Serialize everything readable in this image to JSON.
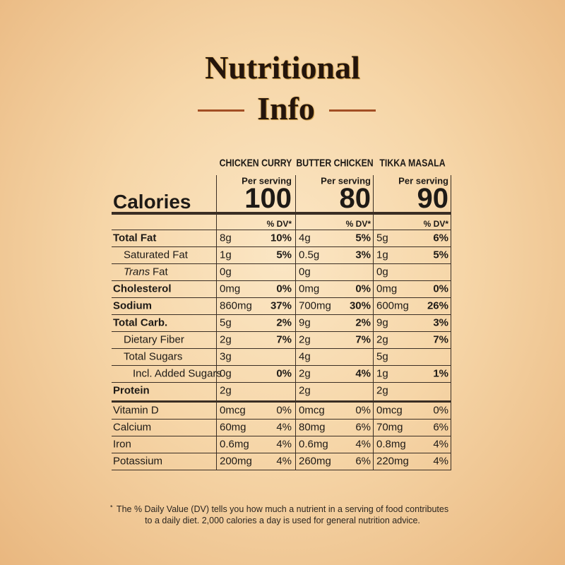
{
  "title": {
    "line1": "Nutritional",
    "line2": "Info"
  },
  "products": [
    {
      "name": "CHICKEN CURRY",
      "serving_label": "Per serving",
      "calories": "100",
      "dv_header": "% DV*"
    },
    {
      "name": "BUTTER CHICKEN",
      "serving_label": "Per serving",
      "calories": "80",
      "dv_header": "% DV*"
    },
    {
      "name": "TIKKA MASALA",
      "serving_label": "Per serving",
      "calories": "90",
      "dv_header": "% DV*"
    }
  ],
  "calories_label": "Calories",
  "nutrients": [
    {
      "label": "Total Fat",
      "bold": true,
      "indent": 0,
      "values": [
        {
          "amount": "8g",
          "dv": "10%"
        },
        {
          "amount": "4g",
          "dv": "5%"
        },
        {
          "amount": "5g",
          "dv": "6%"
        }
      ]
    },
    {
      "label": "Saturated Fat",
      "bold": false,
      "indent": 1,
      "values": [
        {
          "amount": "1g",
          "dv": "5%"
        },
        {
          "amount": "0.5g",
          "dv": "3%"
        },
        {
          "amount": "1g",
          "dv": "5%"
        }
      ]
    },
    {
      "label_italic": "Trans",
      "label": "Fat",
      "bold": false,
      "indent": 1,
      "values": [
        {
          "amount": "0g",
          "dv": null
        },
        {
          "amount": "0g",
          "dv": null
        },
        {
          "amount": "0g",
          "dv": null
        }
      ]
    },
    {
      "label": "Cholesterol",
      "bold": true,
      "indent": 0,
      "values": [
        {
          "amount": "0mg",
          "dv": "0%"
        },
        {
          "amount": "0mg",
          "dv": "0%"
        },
        {
          "amount": "0mg",
          "dv": "0%"
        }
      ]
    },
    {
      "label": "Sodium",
      "bold": true,
      "indent": 0,
      "values": [
        {
          "amount": "860mg",
          "dv": "37%"
        },
        {
          "amount": "700mg",
          "dv": "30%"
        },
        {
          "amount": "600mg",
          "dv": "26%"
        }
      ]
    },
    {
      "label": "Total Carb.",
      "bold": true,
      "indent": 0,
      "values": [
        {
          "amount": "5g",
          "dv": "2%"
        },
        {
          "amount": "9g",
          "dv": "2%"
        },
        {
          "amount": "9g",
          "dv": "3%"
        }
      ]
    },
    {
      "label": "Dietary Fiber",
      "bold": false,
      "indent": 1,
      "values": [
        {
          "amount": "2g",
          "dv": "7%"
        },
        {
          "amount": "2g",
          "dv": "7%"
        },
        {
          "amount": "2g",
          "dv": "7%"
        }
      ]
    },
    {
      "label": "Total Sugars",
      "bold": false,
      "indent": 1,
      "values": [
        {
          "amount": "3g",
          "dv": null
        },
        {
          "amount": "4g",
          "dv": null
        },
        {
          "amount": "5g",
          "dv": null
        }
      ]
    },
    {
      "label": "Incl. Added Sugars",
      "bold": false,
      "indent": 2,
      "values": [
        {
          "amount": "0g",
          "dv": "0%"
        },
        {
          "amount": "2g",
          "dv": "4%"
        },
        {
          "amount": "1g",
          "dv": "1%"
        }
      ]
    },
    {
      "label": "Protein",
      "bold": true,
      "indent": 0,
      "values": [
        {
          "amount": "2g",
          "dv": null
        },
        {
          "amount": "2g",
          "dv": null
        },
        {
          "amount": "2g",
          "dv": null
        }
      ]
    }
  ],
  "micronutrients": [
    {
      "label": "Vitamin D",
      "values": [
        {
          "amount": "0mcg",
          "dv": "0%"
        },
        {
          "amount": "0mcg",
          "dv": "0%"
        },
        {
          "amount": "0mcg",
          "dv": "0%"
        }
      ]
    },
    {
      "label": "Calcium",
      "values": [
        {
          "amount": "60mg",
          "dv": "4%"
        },
        {
          "amount": "80mg",
          "dv": "6%"
        },
        {
          "amount": "70mg",
          "dv": "6%"
        }
      ]
    },
    {
      "label": "Iron",
      "values": [
        {
          "amount": "0.6mg",
          "dv": "4%"
        },
        {
          "amount": "0.6mg",
          "dv": "4%"
        },
        {
          "amount": "0.8mg",
          "dv": "4%"
        }
      ]
    },
    {
      "label": "Potassium",
      "values": [
        {
          "amount": "200mg",
          "dv": "4%"
        },
        {
          "amount": "260mg",
          "dv": "6%"
        },
        {
          "amount": "220mg",
          "dv": "4%"
        }
      ]
    }
  ],
  "footnote": {
    "mark": "*",
    "lines": [
      "The % Daily Value (DV) tells you how much a nutrient in a serving of food contributes",
      "to a daily diet. 2,000 calories a day is used for general nutrition advice."
    ]
  }
}
